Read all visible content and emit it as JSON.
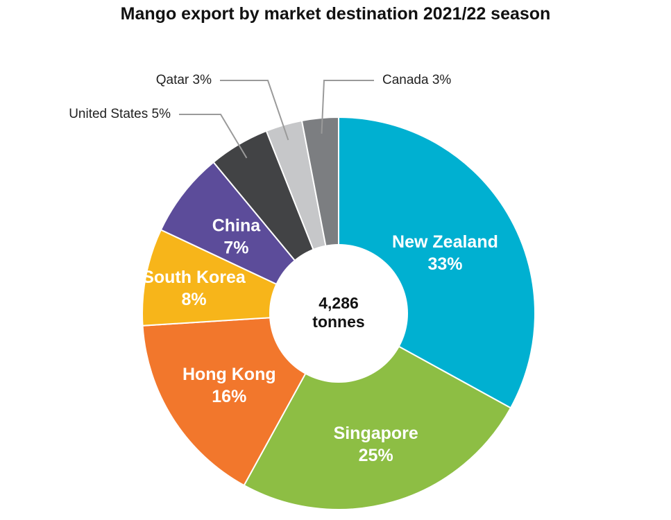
{
  "chart_data": {
    "type": "pie",
    "title": "Mango export by market destination 2021/22 season",
    "center_label": {
      "value": "4,286",
      "unit": "tonnes"
    },
    "total_tonnes": 4286,
    "slices": [
      {
        "name": "New Zealand",
        "percent_label": "33%",
        "value": 33,
        "color": "#00b0d1",
        "label_position": "inside"
      },
      {
        "name": "Singapore",
        "percent_label": "25%",
        "value": 25,
        "color": "#8dbe44",
        "label_position": "inside"
      },
      {
        "name": "Hong Kong",
        "percent_label": "16%",
        "value": 16,
        "color": "#f2772c",
        "label_position": "inside"
      },
      {
        "name": "South Korea",
        "percent_label": "8%",
        "value": 8,
        "color": "#f7b51a",
        "label_position": "inside"
      },
      {
        "name": "China",
        "percent_label": "7%",
        "value": 7,
        "color": "#5c4c9a",
        "label_position": "inside"
      },
      {
        "name": "United States",
        "percent_label": "5%",
        "value": 5,
        "color": "#424345",
        "label_position": "outside"
      },
      {
        "name": "Qatar",
        "percent_label": "3%",
        "value": 3,
        "color": "#c6c7c9",
        "label_position": "outside"
      },
      {
        "name": "Canada",
        "percent_label": "3%",
        "value": 3,
        "color": "#7c7e81",
        "label_position": "outside"
      }
    ],
    "legend": "none"
  }
}
